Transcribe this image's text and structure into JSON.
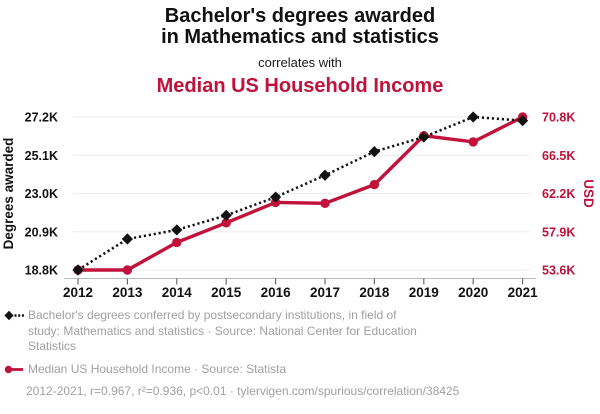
{
  "header": {
    "title_line1": "Bachelor's degrees awarded",
    "title_line2": "in Mathematics and statistics",
    "connector": "correlates with",
    "subtitle": "Median US Household Income"
  },
  "chart_data": {
    "type": "line",
    "title": "Bachelor's degrees awarded in Mathematics and statistics correlates with Median US Household Income",
    "x": [
      2012,
      2013,
      2014,
      2015,
      2016,
      2017,
      2018,
      2019,
      2020,
      2021
    ],
    "series": [
      {
        "name": "Bachelor's degrees conferred by postsecondary institutions, in field of study: Mathematics and statistics",
        "axis": "left",
        "color": "#121212",
        "style": "dotted",
        "marker": "diamond",
        "values": [
          18800,
          20500,
          21000,
          21800,
          22800,
          24000,
          25300,
          26100,
          27200,
          27000
        ]
      },
      {
        "name": "Median US Household Income",
        "axis": "right",
        "color": "#c0123a",
        "style": "solid",
        "marker": "circle",
        "values": [
          53600,
          53600,
          56700,
          58900,
          61200,
          61100,
          63200,
          68700,
          68000,
          70800
        ]
      }
    ],
    "left_axis": {
      "label": "Degrees awarded",
      "ticks": [
        "18.8K",
        "20.9K",
        "23.0K",
        "25.1K",
        "27.2K"
      ],
      "min": 18800,
      "max": 27200
    },
    "right_axis": {
      "label": "USD",
      "ticks": [
        "53.6K",
        "57.9K",
        "62.2K",
        "66.5K",
        "70.8K"
      ],
      "min": 53600,
      "max": 70800
    },
    "grid": true,
    "legend_position": "bottom"
  },
  "legend": {
    "degrees": {
      "lines": [
        "Bachelor's degrees conferred by postsecondary institutions, in field of",
        "study: Mathematics and statistics · Source: National Center for Education",
        "Statistics"
      ]
    },
    "income": {
      "text": "Median US Household Income · Source: Statista"
    },
    "footer": "2012-2021, r=0.967, r²=0.936, p<0.01 · tylervigen.com/spurious/correlation/38425"
  },
  "colors": {
    "accent_red": "#c0123a",
    "series_black": "#121212",
    "legend_gray": "#a0a0a0",
    "gridline": "#ebebeb",
    "axis_line": "#b9b9b9",
    "tick_mark": "#6b6b6b"
  }
}
